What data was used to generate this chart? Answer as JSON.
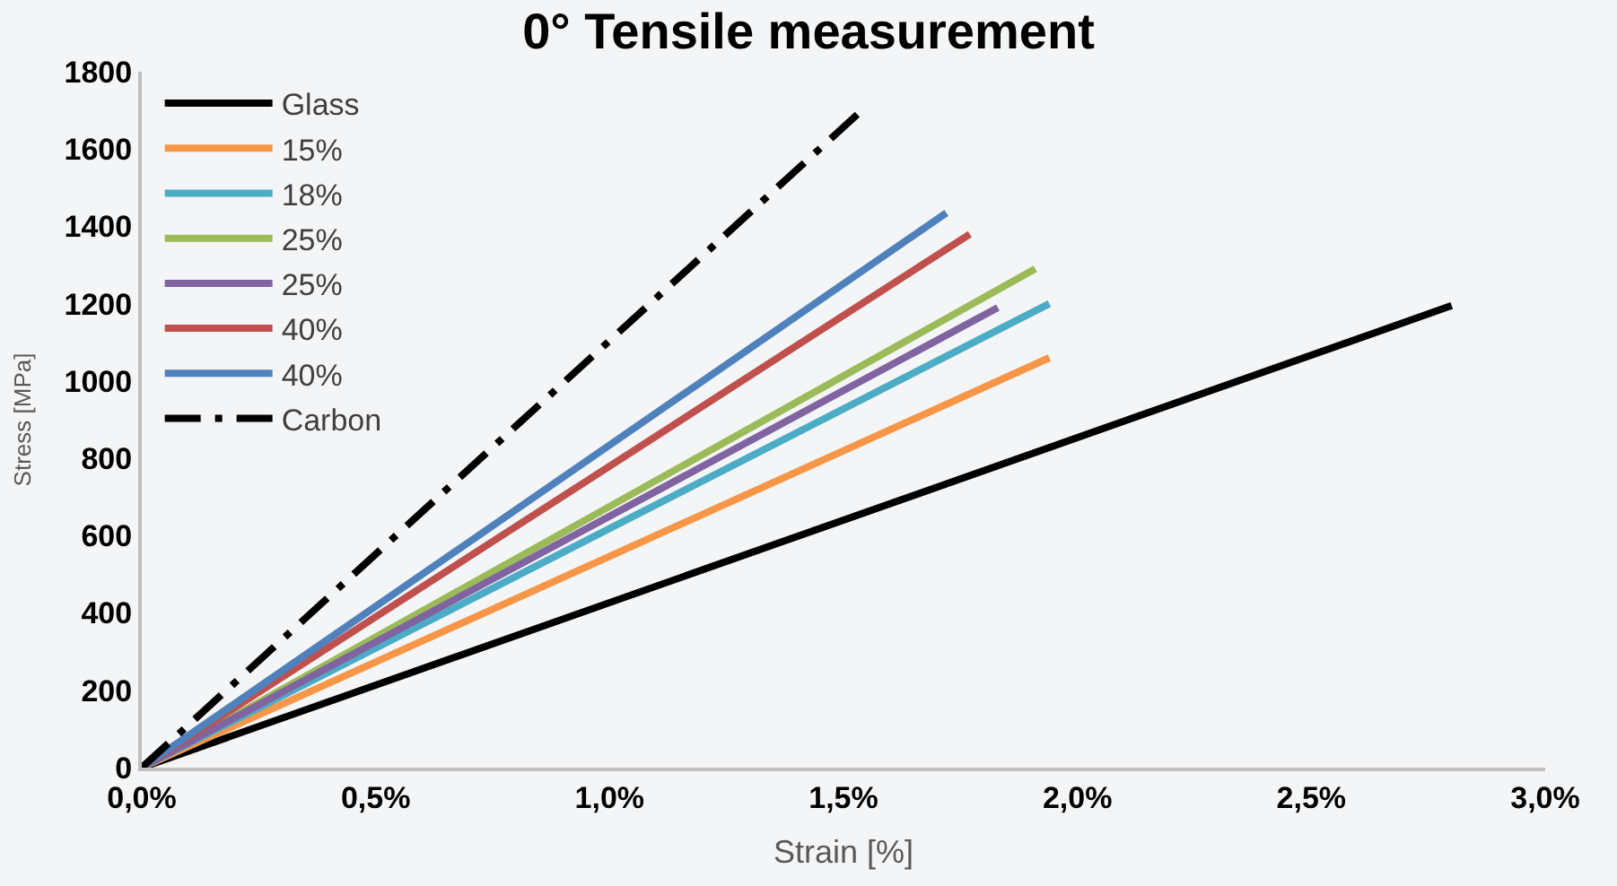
{
  "chart_data": {
    "type": "line",
    "title": "0° Tensile measurement",
    "xlabel": "Strain [%]",
    "ylabel": "Stress [MPa]",
    "xlim": [
      0,
      3.0
    ],
    "ylim": [
      0,
      1800
    ],
    "xticks": [
      {
        "value": 0,
        "label": "0,0%"
      },
      {
        "value": 0.5,
        "label": "0,5%"
      },
      {
        "value": 1.0,
        "label": "1,0%"
      },
      {
        "value": 1.5,
        "label": "1,5%"
      },
      {
        "value": 2.0,
        "label": "2,0%"
      },
      {
        "value": 2.5,
        "label": "2,5%"
      },
      {
        "value": 3.0,
        "label": "3,0%"
      }
    ],
    "yticks": [
      0,
      200,
      400,
      600,
      800,
      1000,
      1200,
      1400,
      1600,
      1800
    ],
    "grid": false,
    "legend": "top left",
    "marker": "none",
    "series": [
      {
        "name": "Glass",
        "color": "#000000",
        "x": [
          0,
          2.8
        ],
        "values": [
          0,
          1195
        ]
      },
      {
        "name": "15%",
        "color": "#f79646",
        "x": [
          0,
          1.94
        ],
        "values": [
          0,
          1060
        ]
      },
      {
        "name": "18%",
        "color": "#4bacc6",
        "x": [
          0,
          1.94
        ],
        "values": [
          0,
          1200
        ]
      },
      {
        "name": "25%",
        "color": "#9bbb59",
        "x": [
          0,
          1.91
        ],
        "values": [
          0,
          1290
        ]
      },
      {
        "name": "25%",
        "color": "#8064a2",
        "x": [
          0,
          1.83
        ],
        "values": [
          0,
          1190
        ]
      },
      {
        "name": "40%",
        "color": "#c0504d",
        "x": [
          0,
          1.77
        ],
        "values": [
          0,
          1380
        ]
      },
      {
        "name": "40%",
        "color": "#4f81bd",
        "x": [
          0,
          1.72
        ],
        "values": [
          0,
          1435
        ]
      },
      {
        "name": "Carbon",
        "color": "#000000",
        "x": [
          0,
          1.53
        ],
        "values": [
          0,
          1690
        ],
        "line_style": "dashdot"
      }
    ]
  }
}
